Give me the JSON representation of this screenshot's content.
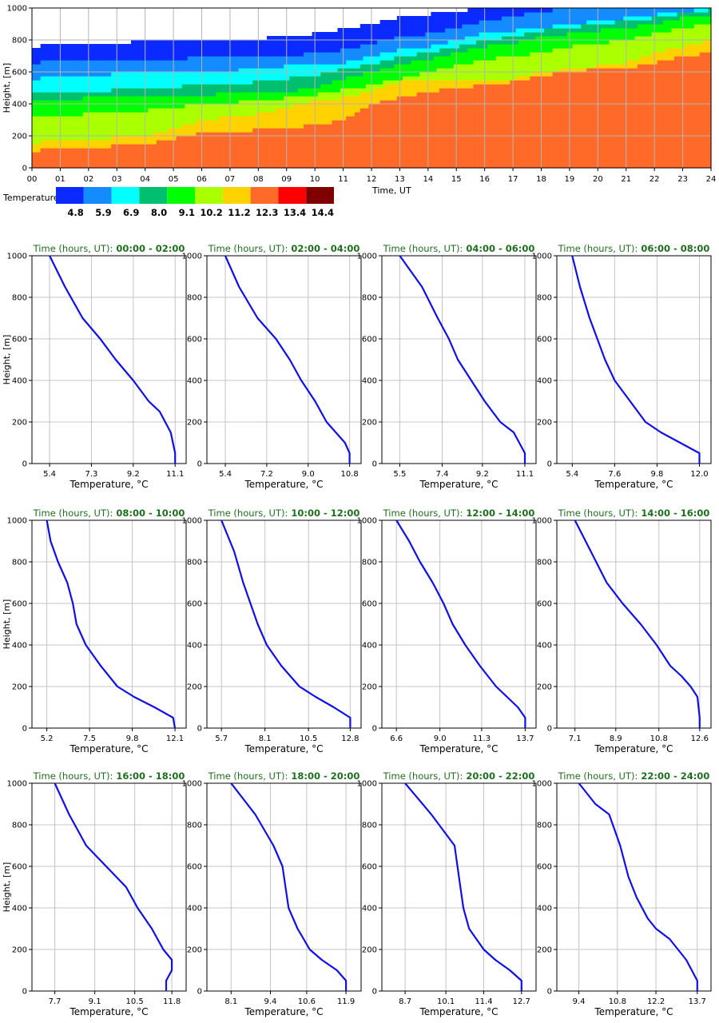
{
  "chart_data": [
    {
      "type": "heatmap",
      "xlabel": "Time, UT",
      "ylabel": "Height, [m]",
      "x_ticks": [
        "00",
        "01",
        "02",
        "03",
        "04",
        "05",
        "06",
        "07",
        "08",
        "09",
        "10",
        "11",
        "12",
        "13",
        "14",
        "15",
        "16",
        "17",
        "18",
        "19",
        "20",
        "21",
        "22",
        "23",
        "24"
      ],
      "y_ticks": [
        "0",
        "200",
        "400",
        "600",
        "800",
        "1000"
      ],
      "xlim": [
        0,
        24
      ],
      "ylim": [
        0,
        1000
      ],
      "grid": true,
      "legend": {
        "title": "Temperature, °C",
        "labels": [
          "4.8",
          "5.9",
          "6.9",
          "8.0",
          "9.1",
          "10.2",
          "11.2",
          "12.3",
          "13.4",
          "14.4"
        ],
        "colors": [
          "#0a2aff",
          "#148cff",
          "#00ffff",
          "#00c070",
          "#00ff00",
          "#aaff00",
          "#ffd200",
          "#ff6a28",
          "#ff0000",
          "#800000"
        ]
      },
      "level_boundaries": [
        {
          "hour": 0,
          "heights": [
            110,
            160,
            320,
            420,
            470,
            560,
            660,
            760,
            900
          ]
        },
        {
          "hour": 2,
          "heights": [
            130,
            180,
            340,
            440,
            480,
            580,
            680,
            780,
            910
          ]
        },
        {
          "hour": 4,
          "heights": [
            150,
            200,
            360,
            460,
            500,
            600,
            680,
            790,
            920
          ]
        },
        {
          "hour": 6,
          "heights": [
            220,
            300,
            400,
            460,
            520,
            600,
            690,
            800,
            930
          ]
        },
        {
          "hour": 8,
          "heights": [
            240,
            340,
            420,
            470,
            540,
            620,
            700,
            810,
            940
          ]
        },
        {
          "hour": 9,
          "heights": [
            250,
            380,
            440,
            480,
            560,
            640,
            700,
            820,
            950
          ]
        },
        {
          "hour": 10,
          "heights": [
            270,
            420,
            460,
            500,
            580,
            650,
            720,
            840,
            960
          ]
        },
        {
          "hour": 11,
          "heights": [
            300,
            440,
            490,
            560,
            620,
            660,
            740,
            870,
            980
          ]
        },
        {
          "hour": 12,
          "heights": [
            400,
            480,
            520,
            600,
            650,
            700,
            780,
            900,
            1000
          ]
        },
        {
          "hour": 13,
          "heights": [
            440,
            540,
            560,
            650,
            700,
            740,
            820,
            940,
            1000
          ]
        },
        {
          "hour": 14,
          "heights": [
            480,
            560,
            600,
            680,
            720,
            760,
            840,
            960,
            1000
          ]
        },
        {
          "hour": 15,
          "heights": [
            500,
            560,
            640,
            720,
            760,
            800,
            880,
            980,
            1000
          ]
        },
        {
          "hour": 16,
          "heights": [
            520,
            560,
            680,
            760,
            800,
            850,
            920,
            1000,
            1000
          ]
        },
        {
          "hour": 17,
          "heights": [
            540,
            560,
            700,
            780,
            820,
            860,
            950,
            1000,
            1000
          ]
        },
        {
          "hour": 18,
          "heights": [
            580,
            600,
            720,
            820,
            860,
            880,
            980,
            1000,
            1000
          ]
        },
        {
          "hour": 19,
          "heights": [
            600,
            620,
            760,
            840,
            880,
            900,
            1000,
            1000,
            1000
          ]
        },
        {
          "hour": 20,
          "heights": [
            620,
            640,
            780,
            860,
            900,
            920,
            1000,
            1000,
            1000
          ]
        },
        {
          "hour": 21,
          "heights": [
            620,
            660,
            800,
            880,
            920,
            940,
            1000,
            1000,
            1000
          ]
        },
        {
          "hour": 22,
          "heights": [
            660,
            720,
            840,
            900,
            940,
            960,
            1000,
            1000,
            1000
          ]
        },
        {
          "hour": 23,
          "heights": [
            700,
            760,
            880,
            940,
            970,
            980,
            1000,
            1000,
            1000
          ]
        },
        {
          "hour": 24,
          "heights": [
            720,
            800,
            900,
            960,
            990,
            1000,
            1000,
            1000,
            1000
          ]
        }
      ]
    },
    {
      "type": "line",
      "title_prefix": "Time (hours, UT):",
      "title_range": "00:00 - 02:00",
      "xlabel": "Temperature, °C",
      "ylabel": "Height, [m]",
      "x_ticks": [
        "5.4",
        "7.3",
        "9.2",
        "11.1"
      ],
      "y_ticks": [
        "0",
        "200",
        "400",
        "600",
        "800",
        "1000"
      ],
      "xlim": [
        4.6,
        11.6
      ],
      "ylim": [
        0,
        1000
      ],
      "series": [
        {
          "x": [
            11.1,
            11.1,
            10.9,
            10.4,
            9.9,
            9.2,
            8.4,
            7.7,
            6.9,
            6.1,
            5.4
          ],
          "y": [
            0,
            50,
            150,
            250,
            300,
            400,
            500,
            600,
            700,
            850,
            1000
          ]
        }
      ]
    },
    {
      "type": "line",
      "title_prefix": "Time (hours, UT):",
      "title_range": "02:00 - 04:00",
      "xlabel": "Temperature, °C",
      "ylabel": "Height, [m]",
      "x_ticks": [
        "5.4",
        "7.2",
        "9.0",
        "10.8"
      ],
      "y_ticks": [
        "0",
        "200",
        "400",
        "600",
        "800",
        "1000"
      ],
      "xlim": [
        4.6,
        11.3
      ],
      "ylim": [
        0,
        1000
      ],
      "series": [
        {
          "x": [
            10.8,
            10.8,
            10.6,
            10.2,
            9.8,
            9.3,
            8.7,
            8.2,
            7.6,
            6.8,
            6.0,
            5.4
          ],
          "y": [
            0,
            50,
            100,
            150,
            200,
            300,
            400,
            500,
            600,
            700,
            850,
            1000
          ]
        }
      ]
    },
    {
      "type": "line",
      "title_prefix": "Time (hours, UT):",
      "title_range": "04:00 - 06:00",
      "xlabel": "Temperature, °C",
      "ylabel": "Height, [m]",
      "x_ticks": [
        "5.5",
        "7.4",
        "9.2",
        "11.1"
      ],
      "y_ticks": [
        "0",
        "200",
        "400",
        "600",
        "800",
        "1000"
      ],
      "xlim": [
        4.7,
        11.6
      ],
      "ylim": [
        0,
        1000
      ],
      "series": [
        {
          "x": [
            11.1,
            11.1,
            10.6,
            10.0,
            9.3,
            8.7,
            8.1,
            7.7,
            7.2,
            6.5,
            5.5
          ],
          "y": [
            0,
            50,
            150,
            200,
            300,
            400,
            500,
            600,
            700,
            850,
            1000
          ]
        }
      ]
    },
    {
      "type": "line",
      "title_prefix": "Time (hours, UT):",
      "title_range": "06:00 - 08:00",
      "xlabel": "Temperature, °C",
      "ylabel": "Height, [m]",
      "x_ticks": [
        "5.4",
        "7.6",
        "9.8",
        "12.0"
      ],
      "y_ticks": [
        "0",
        "200",
        "400",
        "600",
        "800",
        "1000"
      ],
      "xlim": [
        4.6,
        12.6
      ],
      "ylim": [
        0,
        1000
      ],
      "series": [
        {
          "x": [
            12.0,
            12.0,
            11.0,
            10.0,
            9.2,
            8.4,
            7.6,
            7.1,
            6.7,
            6.3,
            5.8,
            5.4
          ],
          "y": [
            0,
            50,
            100,
            150,
            200,
            300,
            400,
            500,
            600,
            700,
            850,
            1000
          ]
        }
      ]
    },
    {
      "type": "line",
      "title_prefix": "Time (hours, UT):",
      "title_range": "08:00 - 10:00",
      "xlabel": "Temperature, °C",
      "ylabel": "Height, [m]",
      "x_ticks": [
        "5.2",
        "7.5",
        "9.8",
        "12.1"
      ],
      "y_ticks": [
        "0",
        "200",
        "400",
        "600",
        "800",
        "1000"
      ],
      "xlim": [
        4.4,
        12.7
      ],
      "ylim": [
        0,
        1000
      ],
      "series": [
        {
          "x": [
            12.1,
            12.0,
            11.0,
            9.9,
            9.0,
            8.1,
            7.3,
            6.8,
            6.6,
            6.3,
            5.8,
            5.4,
            5.2
          ],
          "y": [
            0,
            50,
            100,
            150,
            200,
            300,
            400,
            500,
            600,
            700,
            800,
            900,
            1000
          ]
        }
      ]
    },
    {
      "type": "line",
      "title_prefix": "Time (hours, UT):",
      "title_range": "10:00 - 12:00",
      "xlabel": "Temperature, °C",
      "ylabel": "Height, [m]",
      "x_ticks": [
        "5.7",
        "8.1",
        "10.5",
        "12.8"
      ],
      "y_ticks": [
        "0",
        "200",
        "400",
        "600",
        "800",
        "1000"
      ],
      "xlim": [
        4.9,
        13.4
      ],
      "ylim": [
        0,
        1000
      ],
      "series": [
        {
          "x": [
            12.8,
            12.8,
            11.9,
            10.9,
            10.0,
            9.0,
            8.2,
            7.7,
            7.3,
            6.9,
            6.4,
            5.7
          ],
          "y": [
            0,
            50,
            100,
            150,
            200,
            300,
            400,
            500,
            600,
            700,
            850,
            1000
          ]
        }
      ]
    },
    {
      "type": "line",
      "title_prefix": "Time (hours, UT):",
      "title_range": "12:00 - 14:00",
      "xlabel": "Temperature, °C",
      "ylabel": "Height, [m]",
      "x_ticks": [
        "6.6",
        "9.0",
        "11.3",
        "13.7"
      ],
      "y_ticks": [
        "0",
        "200",
        "400",
        "600",
        "800",
        "1000"
      ],
      "xlim": [
        5.8,
        14.3
      ],
      "ylim": [
        0,
        1000
      ],
      "series": [
        {
          "x": [
            13.7,
            13.7,
            13.3,
            12.7,
            12.1,
            11.2,
            10.4,
            9.7,
            9.2,
            8.6,
            7.9,
            7.3,
            6.6
          ],
          "y": [
            0,
            50,
            100,
            150,
            200,
            300,
            400,
            500,
            600,
            700,
            800,
            900,
            1000
          ]
        }
      ]
    },
    {
      "type": "line",
      "title_prefix": "Time (hours, UT):",
      "title_range": "14:00 - 16:00",
      "xlabel": "Temperature, °C",
      "ylabel": "Height, [m]",
      "x_ticks": [
        "7.1",
        "8.9",
        "10.8",
        "12.6"
      ],
      "y_ticks": [
        "0",
        "200",
        "400",
        "600",
        "800",
        "1000"
      ],
      "xlim": [
        6.3,
        13.1
      ],
      "ylim": [
        0,
        1000
      ],
      "series": [
        {
          "x": [
            12.6,
            12.6,
            12.5,
            12.2,
            11.8,
            11.3,
            10.7,
            10.0,
            9.2,
            8.5,
            7.8,
            7.1
          ],
          "y": [
            0,
            50,
            150,
            200,
            250,
            300,
            400,
            500,
            600,
            700,
            850,
            1000
          ]
        }
      ]
    },
    {
      "type": "line",
      "title_prefix": "Time (hours, UT):",
      "title_range": "16:00 - 18:00",
      "xlabel": "Temperature, °C",
      "ylabel": "Height, [m]",
      "x_ticks": [
        "7.7",
        "9.1",
        "10.5",
        "11.8"
      ],
      "y_ticks": [
        "0",
        "200",
        "400",
        "600",
        "800",
        "1000"
      ],
      "xlim": [
        6.9,
        12.3
      ],
      "ylim": [
        0,
        1000
      ],
      "series": [
        {
          "x": [
            11.6,
            11.6,
            11.8,
            11.8,
            11.5,
            11.1,
            10.6,
            10.2,
            9.5,
            8.8,
            8.2,
            7.7
          ],
          "y": [
            0,
            50,
            100,
            150,
            200,
            300,
            400,
            500,
            600,
            700,
            850,
            1000
          ]
        }
      ]
    },
    {
      "type": "line",
      "title_prefix": "Time (hours, UT):",
      "title_range": "18:00 - 20:00",
      "xlabel": "Temperature, °C",
      "ylabel": "Height, [m]",
      "x_ticks": [
        "8.1",
        "9.4",
        "10.6",
        "11.9"
      ],
      "y_ticks": [
        "0",
        "200",
        "400",
        "600",
        "800",
        "1000"
      ],
      "xlim": [
        7.3,
        12.4
      ],
      "ylim": [
        0,
        1000
      ],
      "series": [
        {
          "x": [
            11.9,
            11.9,
            11.6,
            11.1,
            10.7,
            10.3,
            10.0,
            9.9,
            9.8,
            9.5,
            8.9,
            8.1
          ],
          "y": [
            0,
            50,
            100,
            150,
            200,
            300,
            400,
            500,
            600,
            700,
            850,
            1000
          ]
        }
      ]
    },
    {
      "type": "line",
      "title_prefix": "Time (hours, UT):",
      "title_range": "20:00 - 22:00",
      "xlabel": "Temperature, °C",
      "ylabel": "Height, [m]",
      "x_ticks": [
        "8.7",
        "10.1",
        "11.4",
        "12.7"
      ],
      "y_ticks": [
        "0",
        "200",
        "400",
        "600",
        "800",
        "1000"
      ],
      "xlim": [
        7.9,
        13.2
      ],
      "ylim": [
        0,
        1000
      ],
      "series": [
        {
          "x": [
            12.7,
            12.7,
            12.3,
            11.8,
            11.4,
            10.9,
            10.7,
            10.6,
            10.4,
            9.6,
            8.7
          ],
          "y": [
            0,
            50,
            100,
            150,
            200,
            300,
            400,
            500,
            700,
            850,
            1000
          ]
        }
      ]
    },
    {
      "type": "line",
      "title_prefix": "Time (hours, UT):",
      "title_range": "22:00 - 24:00",
      "xlabel": "Temperature, °C",
      "ylabel": "Height, [m]",
      "x_ticks": [
        "9.4",
        "10.8",
        "12.2",
        "13.7"
      ],
      "y_ticks": [
        "0",
        "200",
        "400",
        "600",
        "800",
        "1000"
      ],
      "xlim": [
        8.6,
        14.2
      ],
      "ylim": [
        0,
        1000
      ],
      "series": [
        {
          "x": [
            13.7,
            13.7,
            13.3,
            12.7,
            12.2,
            11.9,
            11.5,
            11.2,
            10.9,
            10.5,
            10.0,
            9.4
          ],
          "y": [
            0,
            50,
            150,
            250,
            300,
            350,
            450,
            550,
            700,
            850,
            900,
            1000
          ]
        }
      ]
    }
  ]
}
